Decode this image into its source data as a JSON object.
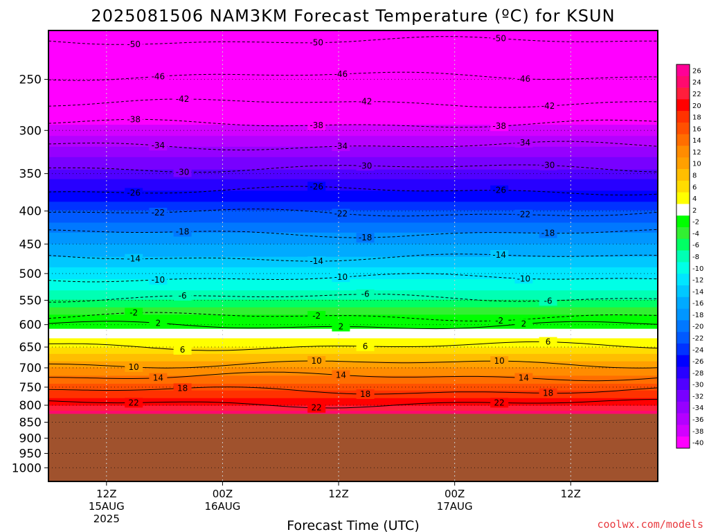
{
  "chart_data": {
    "type": "heatmap",
    "title": "2025081506 NAM3KM Forecast Temperature (ºC) for KSUN",
    "xlabel": "Forecast Time (UTC)",
    "ylabel": "",
    "credit": "coolwx.com/models",
    "y_scale": "log-pressure (inverted)",
    "ylim": [
      1050,
      210
    ],
    "xlim": [
      "2025-08-15T06:00Z",
      "2025-08-17T21:00Z"
    ],
    "ground_level_hPa": 825,
    "pressure_levels": [
      250,
      300,
      350,
      400,
      450,
      500,
      550,
      600,
      650,
      700,
      750,
      800,
      850,
      900,
      950,
      1000
    ],
    "x_ticks": [
      {
        "time": "2025-08-15T12:00Z",
        "lines": [
          "12Z",
          "15AUG",
          "2025"
        ]
      },
      {
        "time": "2025-08-16T00:00Z",
        "lines": [
          "00Z",
          "16AUG"
        ]
      },
      {
        "time": "2025-08-16T12:00Z",
        "lines": [
          "12Z"
        ]
      },
      {
        "time": "2025-08-17T00:00Z",
        "lines": [
          "00Z",
          "17AUG"
        ]
      },
      {
        "time": "2025-08-17T12:00Z",
        "lines": [
          "12Z"
        ]
      }
    ],
    "colorbar": {
      "labels": [
        26,
        24,
        22,
        20,
        18,
        16,
        14,
        12,
        10,
        8,
        6,
        4,
        2,
        -2,
        -4,
        -6,
        -8,
        -10,
        -12,
        -14,
        -16,
        -18,
        -20,
        -22,
        -24,
        -26,
        -28,
        -30,
        -32,
        -34,
        -36,
        -38,
        -40
      ],
      "colors": [
        "#ff0096",
        "#ff0a6e",
        "#ff1e3c",
        "#ff0000",
        "#ff3200",
        "#ff5000",
        "#ff6e00",
        "#ff8c00",
        "#ffa000",
        "#ffbe00",
        "#ffdc00",
        "#ffff00",
        "#ffffff",
        "#00ff00",
        "#32f032",
        "#00ff64",
        "#00ffb4",
        "#00ffe6",
        "#00e6ff",
        "#00c8ff",
        "#00aaff",
        "#0096ff",
        "#0078ff",
        "#005aff",
        "#0032ff",
        "#0000ff",
        "#2800ff",
        "#5000ff",
        "#7800ff",
        "#9600ff",
        "#b400ff",
        "#d200ff",
        "#ff00ff"
      ]
    },
    "isotherms": [
      {
        "value": -50,
        "pressure_hPa": 218
      },
      {
        "value": -46,
        "pressure_hPa": 247
      },
      {
        "value": -42,
        "pressure_hPa": 272
      },
      {
        "value": -38,
        "pressure_hPa": 293
      },
      {
        "value": -34,
        "pressure_hPa": 317
      },
      {
        "value": -30,
        "pressure_hPa": 343
      },
      {
        "value": -26,
        "pressure_hPa": 372
      },
      {
        "value": -22,
        "pressure_hPa": 403
      },
      {
        "value": -18,
        "pressure_hPa": 433
      },
      {
        "value": -14,
        "pressure_hPa": 472
      },
      {
        "value": -10,
        "pressure_hPa": 508
      },
      {
        "value": -6,
        "pressure_hPa": 545
      },
      {
        "value": -2,
        "pressure_hPa": 583
      },
      {
        "value": 2,
        "pressure_hPa": 602
      },
      {
        "value": 6,
        "pressure_hPa": 648
      },
      {
        "value": 10,
        "pressure_hPa": 690
      },
      {
        "value": 14,
        "pressure_hPa": 722
      },
      {
        "value": 18,
        "pressure_hPa": 760
      },
      {
        "value": 22,
        "pressure_hPa": 795
      }
    ],
    "temperature_profile": [
      {
        "pressure_hPa": 210,
        "temp_C": -52
      },
      {
        "pressure_hPa": 250,
        "temp_C": -46
      },
      {
        "pressure_hPa": 300,
        "temp_C": -37
      },
      {
        "pressure_hPa": 350,
        "temp_C": -29
      },
      {
        "pressure_hPa": 400,
        "temp_C": -22
      },
      {
        "pressure_hPa": 450,
        "temp_C": -16
      },
      {
        "pressure_hPa": 500,
        "temp_C": -11
      },
      {
        "pressure_hPa": 550,
        "temp_C": -6
      },
      {
        "pressure_hPa": 600,
        "temp_C": 1
      },
      {
        "pressure_hPa": 650,
        "temp_C": 6
      },
      {
        "pressure_hPa": 700,
        "temp_C": 12
      },
      {
        "pressure_hPa": 750,
        "temp_C": 17
      },
      {
        "pressure_hPa": 800,
        "temp_C": 22
      },
      {
        "pressure_hPa": 825,
        "temp_C": 25
      }
    ]
  }
}
